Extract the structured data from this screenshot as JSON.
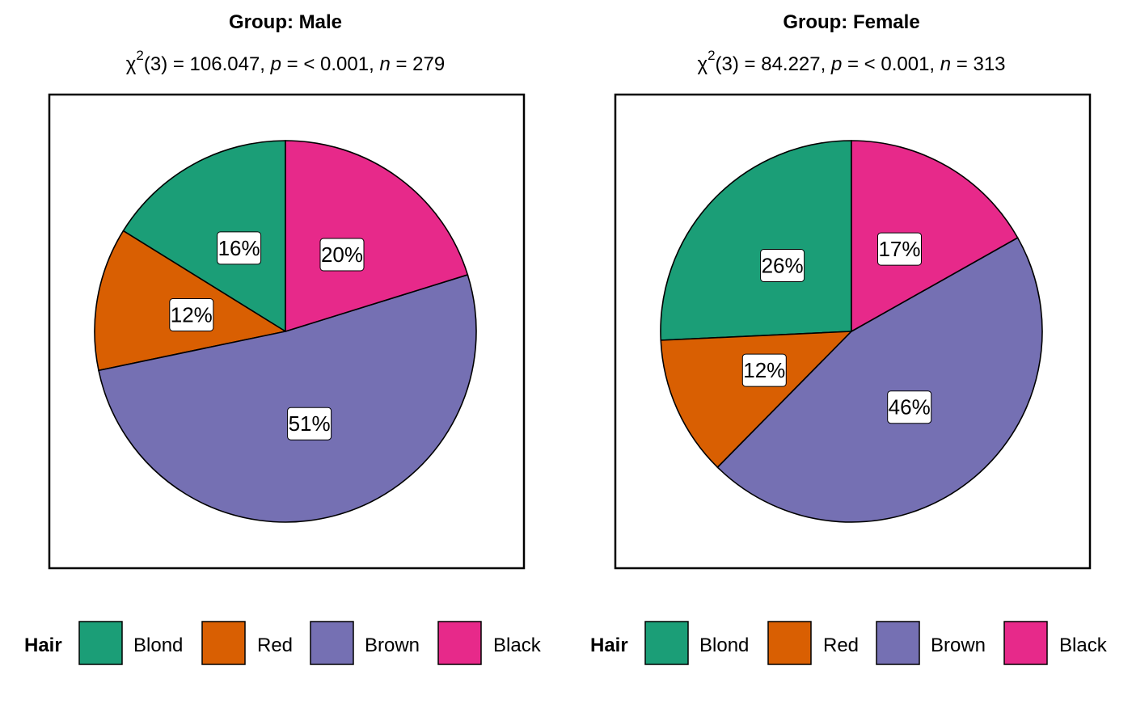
{
  "chart_data": [
    {
      "type": "pie",
      "title": "Group: Male",
      "subtitle": {
        "chi": "χ",
        "sup": "2",
        "df_stat": "(3) = 106.047, ",
        "p": "p",
        "p_val": " = < 0.001, ",
        "n": "n",
        "n_val": " = 279"
      },
      "categories": [
        "Blond",
        "Red",
        "Brown",
        "Black"
      ],
      "values": [
        16,
        12,
        51,
        20
      ],
      "labels": [
        "16%",
        "12%",
        "51%",
        "20%"
      ],
      "legend": {
        "title": "Hair",
        "items": [
          "Blond",
          "Red",
          "Brown",
          "Black"
        ],
        "placement": "bottom"
      }
    },
    {
      "type": "pie",
      "title": "Group: Female",
      "subtitle": {
        "chi": "χ",
        "sup": "2",
        "df_stat": "(3) = 84.227, ",
        "p": "p",
        "p_val": " = < 0.001, ",
        "n": "n",
        "n_val": " = 313"
      },
      "categories": [
        "Blond",
        "Red",
        "Brown",
        "Black"
      ],
      "values": [
        26,
        12,
        46,
        17
      ],
      "labels": [
        "26%",
        "12%",
        "46%",
        "17%"
      ],
      "legend": {
        "title": "Hair",
        "items": [
          "Blond",
          "Red",
          "Brown",
          "Black"
        ],
        "placement": "bottom"
      }
    }
  ],
  "colors": {
    "Blond": "#1b9e77",
    "Red": "#d95f02",
    "Brown": "#7570b3",
    "Black": "#e7298a"
  }
}
